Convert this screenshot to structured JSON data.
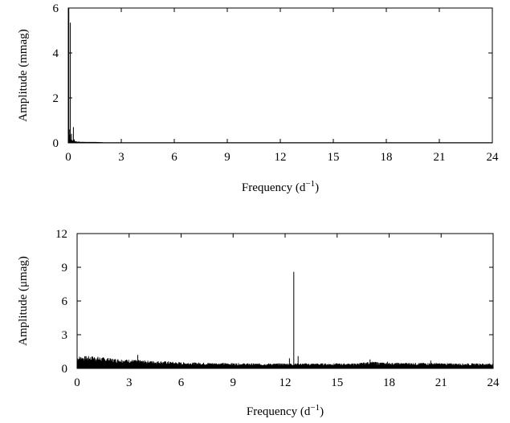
{
  "chart_data": [
    {
      "type": "line",
      "xlabel": "Frequency (d",
      "xlabel_sup": "−1",
      "xlabel_suffix": ")",
      "ylabel": "Amplitude (mmag)",
      "xlim": [
        0,
        24
      ],
      "ylim": [
        0,
        6
      ],
      "xticks": [
        0,
        3,
        6,
        9,
        12,
        15,
        18,
        21,
        24
      ],
      "yticks": [
        0,
        2,
        4,
        6
      ],
      "grid": false,
      "series": [
        {
          "x": [
            0.0,
            0.03,
            0.06,
            0.09,
            0.11,
            0.12,
            0.14,
            0.16,
            0.18,
            0.2,
            0.22,
            0.24,
            0.26,
            0.27,
            0.28,
            0.29,
            0.3,
            0.32,
            0.34,
            0.36,
            0.38,
            0.4,
            0.45,
            0.5,
            0.6,
            0.7,
            0.8,
            1.0,
            1.5,
            2,
            3,
            4,
            5,
            6,
            7,
            8,
            9,
            10,
            11,
            12,
            13,
            14,
            15,
            16,
            17,
            18,
            19,
            20,
            21,
            22,
            23,
            24
          ],
          "y": [
            0.05,
            6.0,
            0.6,
            0.35,
            0.2,
            5.35,
            0.15,
            0.1,
            0.4,
            0.08,
            0.12,
            0.06,
            0.1,
            0.05,
            0.1,
            0.7,
            0.1,
            0.06,
            0.15,
            0.05,
            0.08,
            0.04,
            0.06,
            0.03,
            0.04,
            0.02,
            0.03,
            0.02,
            0.02,
            0.01,
            0.01,
            0.01,
            0.01,
            0.01,
            0.01,
            0.01,
            0.01,
            0.01,
            0.01,
            0.01,
            0.01,
            0.01,
            0.01,
            0.01,
            0.01,
            0.01,
            0.01,
            0.01,
            0.01,
            0.01,
            0.01,
            0.01
          ]
        }
      ]
    },
    {
      "type": "line",
      "xlabel": "Frequency (d",
      "xlabel_sup": "−1",
      "xlabel_suffix": ")",
      "ylabel": "Amplitude (μmag)",
      "xlim": [
        0,
        24
      ],
      "ylim": [
        0,
        12
      ],
      "xticks": [
        0,
        3,
        6,
        9,
        12,
        15,
        18,
        21,
        24
      ],
      "yticks": [
        0,
        3,
        6,
        9,
        12
      ],
      "grid": false,
      "noise_floor": [
        {
          "x": 0,
          "y": 1.1
        },
        {
          "x": 1,
          "y": 1.1
        },
        {
          "x": 2,
          "y": 0.9
        },
        {
          "x": 3,
          "y": 0.8
        },
        {
          "x": 4,
          "y": 0.7
        },
        {
          "x": 5,
          "y": 0.65
        },
        {
          "x": 6,
          "y": 0.55
        },
        {
          "x": 8,
          "y": 0.5
        },
        {
          "x": 10,
          "y": 0.45
        },
        {
          "x": 12,
          "y": 0.45
        },
        {
          "x": 14,
          "y": 0.45
        },
        {
          "x": 16,
          "y": 0.45
        },
        {
          "x": 17,
          "y": 0.6
        },
        {
          "x": 18,
          "y": 0.5
        },
        {
          "x": 20,
          "y": 0.5
        },
        {
          "x": 22,
          "y": 0.45
        },
        {
          "x": 24,
          "y": 0.45
        }
      ],
      "peaks": [
        {
          "x": 3.5,
          "y": 1.2
        },
        {
          "x": 12.25,
          "y": 0.9
        },
        {
          "x": 12.5,
          "y": 8.6
        },
        {
          "x": 12.75,
          "y": 1.1
        },
        {
          "x": 16.9,
          "y": 0.8
        },
        {
          "x": 17.9,
          "y": 0.6
        },
        {
          "x": 20.4,
          "y": 0.7
        }
      ]
    }
  ]
}
